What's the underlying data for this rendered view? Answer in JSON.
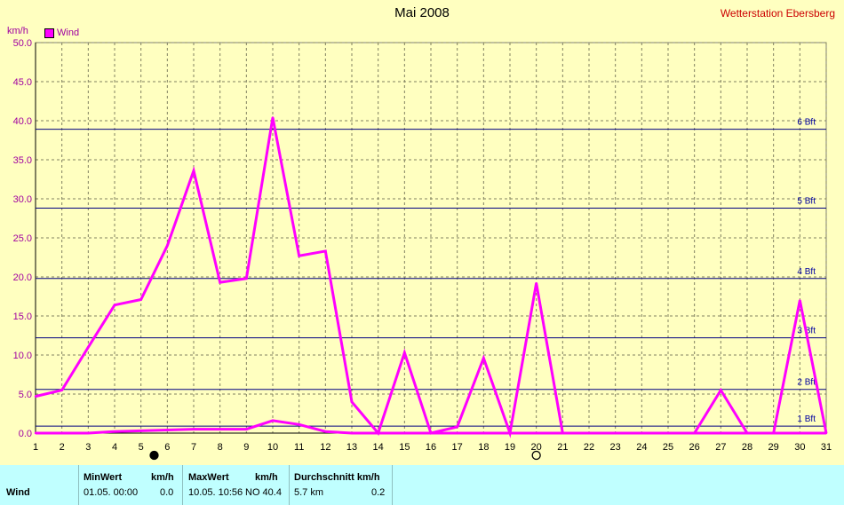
{
  "header": {
    "title": "Mai 2008",
    "station": "Wetterstation Ebersberg",
    "unit": "km/h"
  },
  "legend": {
    "label": "Wind",
    "color": "#ff00ff"
  },
  "chart_data": {
    "type": "line",
    "title": "Mai 2008",
    "ylabel": "km/h",
    "ylim": [
      0,
      50
    ],
    "xlim": [
      1,
      31
    ],
    "y_ticks": [
      "0.0",
      "5.0",
      "10.0",
      "15.0",
      "20.0",
      "25.0",
      "30.0",
      "35.0",
      "40.0",
      "45.0",
      "50.0"
    ],
    "x_ticks": [
      "1",
      "2",
      "3",
      "4",
      "5",
      "6",
      "7",
      "8",
      "9",
      "10",
      "11",
      "12",
      "13",
      "14",
      "15",
      "16",
      "17",
      "18",
      "19",
      "20",
      "21",
      "22",
      "23",
      "24",
      "25",
      "26",
      "27",
      "28",
      "29",
      "30",
      "31"
    ],
    "grid": true,
    "legend_position": "top-left",
    "series": [
      {
        "name": "Wind",
        "color": "#ff00ff",
        "x": [
          1,
          2,
          3,
          4,
          5,
          6,
          7,
          8,
          9,
          10,
          11,
          12,
          13,
          14,
          15,
          16,
          17,
          18,
          19,
          20,
          21,
          22,
          23,
          24,
          25,
          26,
          27,
          28,
          29,
          30,
          31
        ],
        "values": [
          4.7,
          5.5,
          11.0,
          16.4,
          17.1,
          24.0,
          33.6,
          19.3,
          19.8,
          40.4,
          22.7,
          23.3,
          4.0,
          0.0,
          10.3,
          0.0,
          0.8,
          9.6,
          0.0,
          19.2,
          0.0,
          0.0,
          0.0,
          0.0,
          0.0,
          0.0,
          5.5,
          0.0,
          0.0,
          17.0,
          0.0
        ]
      },
      {
        "color": "#ff00ff",
        "x": [
          1,
          2,
          3,
          4,
          5,
          6,
          7,
          8,
          9,
          10,
          11,
          12,
          13,
          14,
          15,
          16,
          17,
          18,
          19,
          20,
          21,
          22,
          23,
          24,
          25,
          26,
          27,
          28,
          29,
          30,
          31
        ],
        "values": [
          0.0,
          0.0,
          0.0,
          0.2,
          0.3,
          0.4,
          0.5,
          0.5,
          0.5,
          1.6,
          1.1,
          0.2,
          0.0,
          0.0,
          0.0,
          0.0,
          0.0,
          0.0,
          0.0,
          0.0,
          0.0,
          0.0,
          0.0,
          0.0,
          0.0,
          0.0,
          0.0,
          0.0,
          0.0,
          0.0,
          0.0
        ]
      }
    ],
    "reference_lines": [
      {
        "label": "1 Bft",
        "value": 0.9
      },
      {
        "label": "2 Bft",
        "value": 5.6
      },
      {
        "label": "3 Bft",
        "value": 12.2
      },
      {
        "label": "4 Bft",
        "value": 19.8
      },
      {
        "label": "5 Bft",
        "value": 28.8
      },
      {
        "label": "6 Bft",
        "value": 38.9
      }
    ],
    "moon_markers": [
      {
        "day": 5.5,
        "phase": "new"
      },
      {
        "day": 20,
        "phase": "full"
      }
    ]
  },
  "stats": {
    "row_label": "Wind",
    "min_header": "MinWert",
    "min_unit": "km/h",
    "min_time": "01.05.  00:00",
    "min_value": "0.0",
    "max_header": "MaxWert",
    "max_unit": "km/h",
    "max_time": "10.05.  10:56",
    "max_value": "NO 40.4",
    "avg_header": "Durchschnitt km/h",
    "avg_left": "5.7 km",
    "avg_value": "0.2"
  }
}
